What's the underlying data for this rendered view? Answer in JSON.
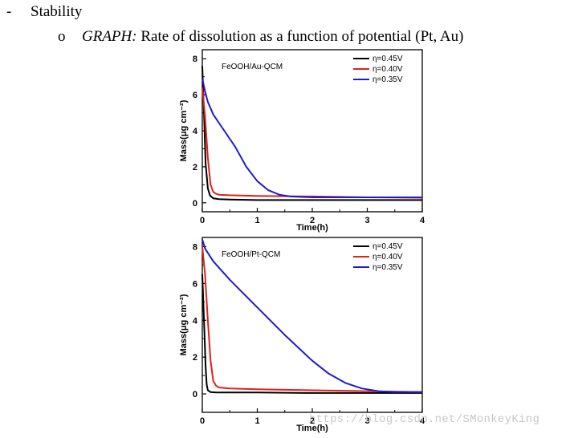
{
  "header": {
    "bullet_symbol": "-",
    "bullet_text": "Stability",
    "sub_symbol": "o",
    "graph_label": "GRAPH:",
    "graph_description": " Rate of dissolution as a function of potential (Pt, Au)"
  },
  "watermark": "https://blog.csdn.net/SMonkeyKing",
  "chart_data": [
    {
      "type": "line",
      "title": "FeOOH/Au-QCM",
      "xlabel": "Time(h)",
      "ylabel": "Mass(μg cm⁻²)",
      "xlim": [
        0,
        4
      ],
      "ylim": [
        -0.5,
        8.5
      ],
      "xticks": [
        "0",
        "1",
        "2",
        "3",
        "4"
      ],
      "yticks": [
        "0",
        "2",
        "4",
        "6",
        "8"
      ],
      "legend_position": "top-right",
      "series": [
        {
          "name": "η=0.45V",
          "color": "#000000",
          "x": [
            0,
            0.03,
            0.06,
            0.1,
            0.14,
            0.2,
            0.3,
            0.5,
            1.0,
            2.0,
            3.0,
            4.0
          ],
          "y": [
            7.6,
            5.0,
            2.2,
            0.8,
            0.4,
            0.25,
            0.2,
            0.18,
            0.15,
            0.15,
            0.15,
            0.15
          ]
        },
        {
          "name": "η=0.40V",
          "color": "#e0201a",
          "x": [
            0,
            0.05,
            0.1,
            0.15,
            0.2,
            0.25,
            0.3,
            0.5,
            1.0,
            2.0,
            3.0,
            4.0
          ],
          "y": [
            6.4,
            4.8,
            2.5,
            1.0,
            0.6,
            0.5,
            0.45,
            0.42,
            0.38,
            0.35,
            0.3,
            0.28
          ]
        },
        {
          "name": "η=0.35V",
          "color": "#1c1ccf",
          "x": [
            0,
            0.05,
            0.1,
            0.2,
            0.4,
            0.6,
            0.8,
            1.0,
            1.2,
            1.4,
            1.6,
            2.0,
            3.0,
            4.0
          ],
          "y": [
            6.9,
            6.2,
            5.6,
            4.9,
            4.0,
            3.1,
            2.0,
            1.2,
            0.7,
            0.45,
            0.35,
            0.3,
            0.3,
            0.3
          ]
        }
      ]
    },
    {
      "type": "line",
      "title": "FeOOH/Pt-QCM",
      "xlabel": "Time(h)",
      "ylabel": "Mass(μg cm⁻²)",
      "xlim": [
        0,
        4
      ],
      "ylim": [
        -1,
        8.5
      ],
      "xticks": [
        "0",
        "1",
        "2",
        "3",
        "4"
      ],
      "yticks": [
        "0",
        "2",
        "4",
        "6",
        "8"
      ],
      "legend_position": "top-right",
      "series": [
        {
          "name": "η=0.45V",
          "color": "#000000",
          "x": [
            0,
            0.03,
            0.06,
            0.08,
            0.1,
            0.15,
            0.25,
            0.5,
            1.0,
            2.0,
            3.0,
            4.0
          ],
          "y": [
            6.5,
            4.0,
            1.5,
            0.5,
            0.2,
            0.1,
            0.08,
            0.08,
            0.08,
            0.05,
            0.05,
            0.05
          ]
        },
        {
          "name": "η=0.40V",
          "color": "#e0201a",
          "x": [
            0,
            0.05,
            0.1,
            0.15,
            0.2,
            0.25,
            0.3,
            0.5,
            1.0,
            2.0,
            3.0,
            4.0
          ],
          "y": [
            8.0,
            6.5,
            4.0,
            1.8,
            0.7,
            0.45,
            0.35,
            0.3,
            0.25,
            0.2,
            0.15,
            0.1
          ]
        },
        {
          "name": "η=0.35V",
          "color": "#1c1ccf",
          "x": [
            0,
            0.05,
            0.2,
            0.5,
            1.0,
            1.5,
            2.0,
            2.3,
            2.6,
            2.9,
            3.2,
            3.5,
            4.0
          ],
          "y": [
            8.4,
            7.9,
            7.2,
            6.2,
            4.7,
            3.2,
            1.8,
            1.1,
            0.6,
            0.3,
            0.15,
            0.1,
            0.1
          ]
        }
      ]
    }
  ]
}
